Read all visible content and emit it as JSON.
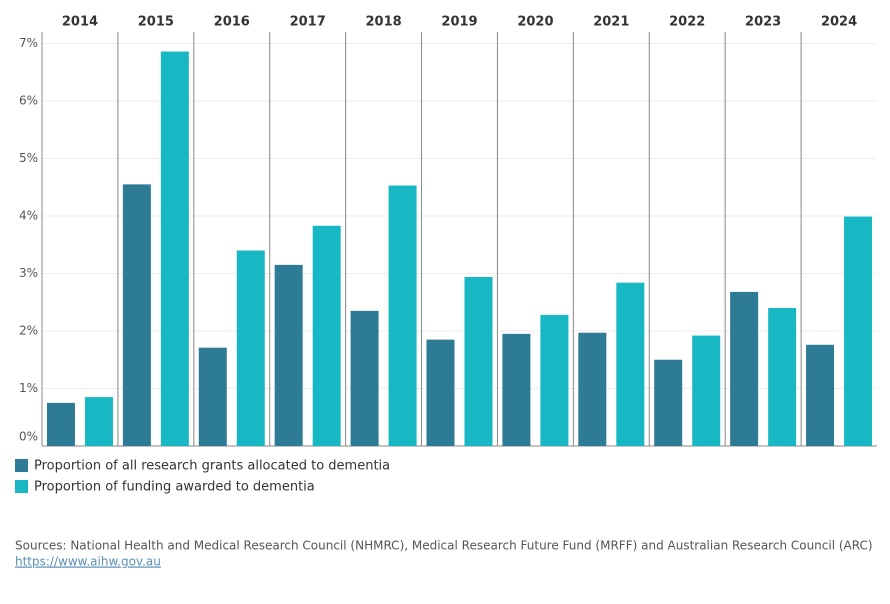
{
  "chart_data": {
    "type": "bar",
    "categories": [
      "2014",
      "2015",
      "2016",
      "2017",
      "2018",
      "2019",
      "2020",
      "2021",
      "2022",
      "2023",
      "2024"
    ],
    "series": [
      {
        "name": "Proportion of all research grants allocated to dementia",
        "color": "#2e7b96",
        "values": [
          0.75,
          4.55,
          1.71,
          3.15,
          2.35,
          1.85,
          1.95,
          1.97,
          1.5,
          2.68,
          1.76
        ]
      },
      {
        "name": "Proportion of funding awarded to dementia",
        "color": "#17b8c4",
        "values": [
          0.85,
          6.86,
          3.4,
          3.83,
          4.53,
          2.94,
          2.28,
          2.84,
          1.92,
          2.4,
          3.99
        ]
      }
    ],
    "ylim": [
      0,
      7.2
    ],
    "yticks": [
      {
        "value": 0,
        "label": "0%"
      },
      {
        "value": 1,
        "label": "1%"
      },
      {
        "value": 2,
        "label": "2%"
      },
      {
        "value": 3,
        "label": "3%"
      },
      {
        "value": 4,
        "label": "4%"
      },
      {
        "value": 5,
        "label": "5%"
      },
      {
        "value": 6,
        "label": "6%"
      },
      {
        "value": 7,
        "label": "7%"
      }
    ],
    "grid": true,
    "source": "Sources: National Health and Medical Research Council (NHMRC), Medical Research Future Fund (MRFF) and Australian Research Council (ARC)",
    "source_url": "https://www.aihw.gov.au"
  }
}
